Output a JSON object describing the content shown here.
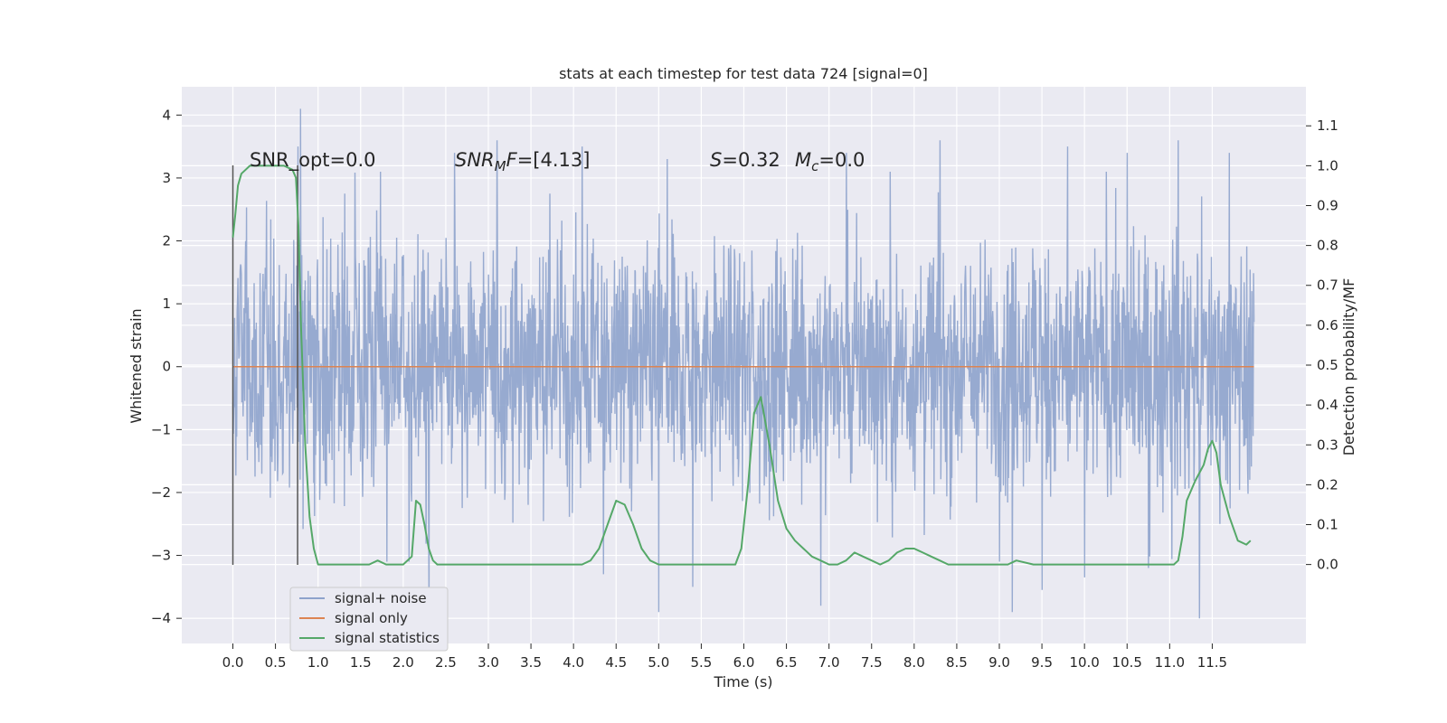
{
  "chart_data": {
    "type": "line",
    "title": "stats at each timestep for test data 724 [signal=0]",
    "xlabel": "Time (s)",
    "ylabel": "Whitened strain",
    "ylabel_right": "Detection probability/MF",
    "xlim": [
      -0.6,
      12.6
    ],
    "ylim": [
      -4.4,
      4.45
    ],
    "ylim_right": [
      -0.198,
      1.198
    ],
    "x_ticks": [
      "0.0",
      "0.5",
      "1.0",
      "1.5",
      "2.0",
      "2.5",
      "3.0",
      "3.5",
      "4.0",
      "4.5",
      "5.0",
      "5.5",
      "6.0",
      "6.5",
      "7.0",
      "7.5",
      "8.0",
      "8.5",
      "9.0",
      "9.5",
      "10.0",
      "10.5",
      "11.0",
      "11.5"
    ],
    "y_ticks": [
      "−4",
      "−3",
      "−2",
      "−1",
      "0",
      "1",
      "2",
      "3",
      "4"
    ],
    "y_ticks_right": [
      "0.0",
      "0.1",
      "0.2",
      "0.3",
      "0.4",
      "0.5",
      "0.6",
      "0.7",
      "0.8",
      "0.9",
      "1.0",
      "1.1"
    ],
    "grid": true,
    "legend": {
      "placement": "lower-left",
      "entries": [
        "signal+ noise",
        "signal only",
        "signal statistics"
      ]
    },
    "colors": {
      "noise": "#8ea3cc",
      "signal": "#dd8452",
      "stats": "#55a868",
      "background": "#eaeaf2",
      "grid": "#ffffff",
      "marker": "#555555"
    },
    "annotations": {
      "snr_opt": "SNR_opt=0.0",
      "snr_mf_main": "SNR",
      "snr_mf_sub": "M",
      "snr_mf_tail": "F",
      "snr_mf_value": "=[4.13]",
      "s_symbol": "S",
      "s_value": "=0.32",
      "mc_symbol": "M",
      "mc_sub": "c",
      "mc_value": "=0.0"
    },
    "vertical_markers": [
      0.0,
      0.76
    ],
    "marker_range": [
      -3.15,
      3.2
    ],
    "series": [
      {
        "name": "signal+ noise",
        "x_range": [
          0.0,
          11.99
        ],
        "typical_band": [
          -1.8,
          1.9
        ],
        "peaks": [
          [
            0.79,
            4.1
          ],
          [
            0.76,
            3.5
          ],
          [
            2.6,
            3.4
          ],
          [
            3.1,
            3.6
          ],
          [
            4.1,
            3.5
          ],
          [
            5.1,
            3.3
          ],
          [
            7.2,
            3.4
          ],
          [
            8.3,
            3.6
          ],
          [
            9.8,
            3.5
          ],
          [
            10.5,
            3.4
          ],
          [
            11.1,
            3.6
          ],
          [
            11.7,
            3.4
          ],
          [
            2.3,
            -3.9
          ],
          [
            5.0,
            -3.9
          ],
          [
            6.9,
            -3.8
          ],
          [
            9.15,
            -3.9
          ],
          [
            11.35,
            -4.0
          ],
          [
            10.0,
            -3.35
          ],
          [
            4.35,
            -3.3
          ],
          [
            5.4,
            -3.5
          ],
          [
            9.5,
            -3.55
          ],
          [
            10.75,
            -3.2
          ]
        ]
      },
      {
        "name": "signal only",
        "x": [
          0.0,
          11.99
        ],
        "y": [
          0.0,
          0.0
        ]
      },
      {
        "name": "signal statistics",
        "axis": "right",
        "x": [
          0.0,
          0.03,
          0.06,
          0.1,
          0.15,
          0.2,
          0.3,
          0.4,
          0.5,
          0.6,
          0.7,
          0.74,
          0.77,
          0.8,
          0.85,
          0.9,
          0.95,
          1.0,
          1.2,
          1.4,
          1.5,
          1.6,
          1.7,
          1.8,
          1.9,
          2.0,
          2.1,
          2.15,
          2.2,
          2.25,
          2.3,
          2.35,
          2.4,
          2.5,
          3.0,
          3.5,
          3.8,
          4.0,
          4.1,
          4.2,
          4.3,
          4.4,
          4.5,
          4.6,
          4.7,
          4.8,
          4.9,
          5.0,
          5.2,
          5.4,
          5.6,
          5.8,
          5.9,
          5.97,
          6.05,
          6.12,
          6.2,
          6.3,
          6.4,
          6.5,
          6.6,
          6.7,
          6.8,
          6.9,
          7.0,
          7.1,
          7.2,
          7.3,
          7.4,
          7.5,
          7.6,
          7.7,
          7.8,
          7.9,
          8.0,
          8.1,
          8.2,
          8.3,
          8.4,
          8.5,
          8.7,
          8.9,
          9.0,
          9.1,
          9.2,
          9.4,
          9.6,
          9.8,
          10.0,
          10.5,
          10.9,
          11.0,
          11.05,
          11.1,
          11.15,
          11.2,
          11.3,
          11.4,
          11.45,
          11.5,
          11.55,
          11.6,
          11.7,
          11.8,
          11.9,
          11.95
        ],
        "y": [
          0.82,
          0.88,
          0.95,
          0.98,
          0.99,
          1.0,
          1.0,
          1.0,
          1.0,
          1.0,
          0.99,
          0.97,
          0.85,
          0.6,
          0.3,
          0.12,
          0.04,
          0.0,
          0.0,
          0.0,
          0.0,
          0.0,
          0.01,
          0.0,
          0.0,
          0.0,
          0.02,
          0.16,
          0.15,
          0.1,
          0.04,
          0.01,
          0.0,
          0.0,
          0.0,
          0.0,
          0.0,
          0.0,
          0.0,
          0.01,
          0.04,
          0.1,
          0.16,
          0.15,
          0.1,
          0.04,
          0.01,
          0.0,
          0.0,
          0.0,
          0.0,
          0.0,
          0.0,
          0.04,
          0.2,
          0.38,
          0.42,
          0.3,
          0.16,
          0.09,
          0.06,
          0.04,
          0.02,
          0.01,
          0.0,
          0.0,
          0.01,
          0.03,
          0.02,
          0.01,
          0.0,
          0.01,
          0.03,
          0.04,
          0.04,
          0.03,
          0.02,
          0.01,
          0.0,
          0.0,
          0.0,
          0.0,
          0.0,
          0.0,
          0.01,
          0.0,
          0.0,
          0.0,
          0.0,
          0.0,
          0.0,
          0.0,
          0.0,
          0.01,
          0.07,
          0.16,
          0.21,
          0.25,
          0.29,
          0.31,
          0.28,
          0.2,
          0.12,
          0.06,
          0.05,
          0.06
        ]
      }
    ]
  }
}
